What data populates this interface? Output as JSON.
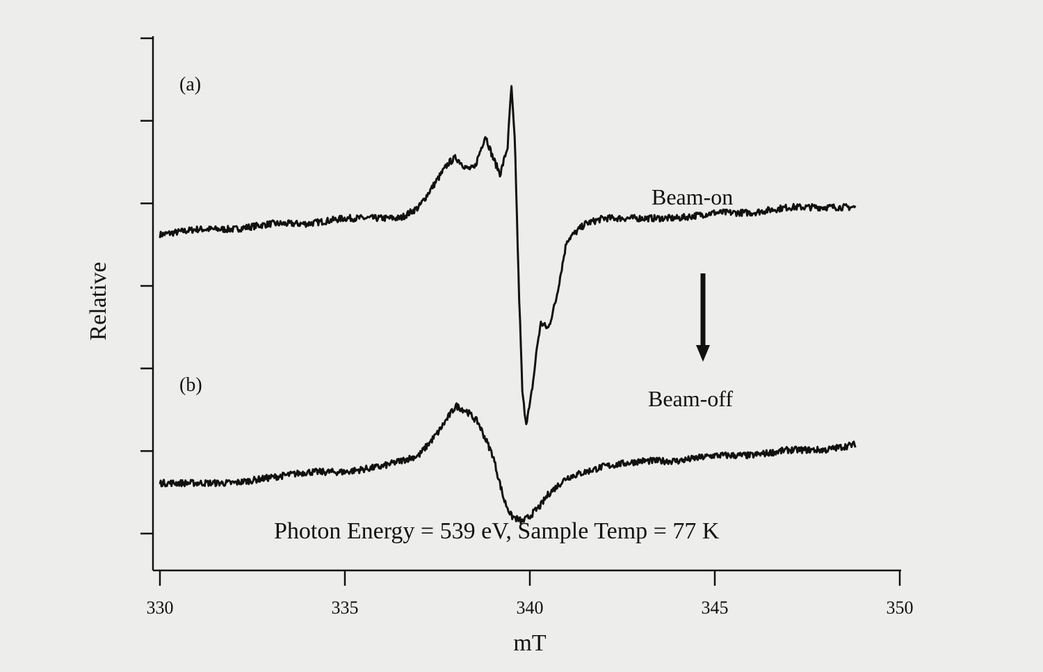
{
  "chart_data": {
    "type": "line",
    "xlabel": "mT",
    "ylabel": "Relative",
    "xlim": [
      330,
      350
    ],
    "ylim": [
      0,
      1
    ],
    "x_ticks": [
      "330",
      "335",
      "340",
      "345",
      "350"
    ],
    "x_tick_values": [
      330,
      335,
      340,
      345,
      350
    ],
    "y_tick_count": 7,
    "grid": false,
    "annotations": {
      "panel_a": "(a)",
      "panel_b": "(b)",
      "conditions": "Photon Energy = 539 eV, Sample Temp = 77 K"
    },
    "series": [
      {
        "name": "Beam-on",
        "x": [
          330.0,
          331.0,
          332.0,
          333.0,
          334.0,
          335.0,
          336.0,
          336.5,
          337.0,
          337.5,
          337.8,
          338.0,
          338.3,
          338.5,
          338.8,
          339.0,
          339.2,
          339.4,
          339.5,
          339.6,
          339.7,
          339.8,
          339.9,
          340.0,
          340.1,
          340.2,
          340.3,
          340.5,
          340.7,
          341.0,
          341.5,
          342.0,
          343.0,
          344.0,
          345.0,
          346.0,
          347.0,
          348.0,
          348.8
        ],
        "y": [
          0.64,
          0.65,
          0.65,
          0.66,
          0.66,
          0.67,
          0.67,
          0.67,
          0.69,
          0.74,
          0.77,
          0.78,
          0.76,
          0.76,
          0.82,
          0.78,
          0.75,
          0.8,
          0.91,
          0.8,
          0.55,
          0.35,
          0.3,
          0.33,
          0.38,
          0.44,
          0.48,
          0.47,
          0.52,
          0.63,
          0.66,
          0.67,
          0.67,
          0.67,
          0.68,
          0.68,
          0.69,
          0.69,
          0.69
        ]
      },
      {
        "name": "Beam-off",
        "x": [
          330.0,
          331.0,
          332.0,
          333.0,
          334.0,
          335.0,
          336.0,
          337.0,
          337.5,
          338.0,
          338.3,
          338.6,
          339.0,
          339.3,
          339.5,
          339.8,
          340.0,
          340.3,
          340.5,
          341.0,
          341.5,
          342.0,
          343.0,
          344.0,
          345.0,
          346.0,
          347.0,
          348.0,
          348.8
        ],
        "y": [
          0.19,
          0.19,
          0.19,
          0.2,
          0.21,
          0.21,
          0.22,
          0.24,
          0.28,
          0.33,
          0.32,
          0.3,
          0.24,
          0.16,
          0.13,
          0.12,
          0.13,
          0.15,
          0.17,
          0.2,
          0.21,
          0.22,
          0.23,
          0.23,
          0.24,
          0.24,
          0.25,
          0.25,
          0.26
        ]
      }
    ],
    "arrow": {
      "from": "Beam-on",
      "to": "Beam-off"
    }
  }
}
